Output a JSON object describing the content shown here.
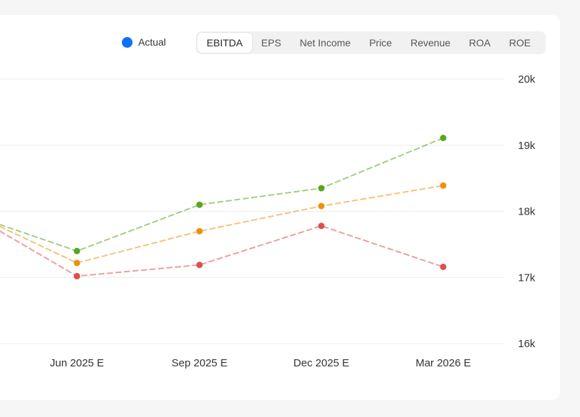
{
  "legend": {
    "label": "Actual",
    "color": "#0a73f5"
  },
  "tabs": [
    {
      "label": "EBITDA",
      "active": true
    },
    {
      "label": "EPS",
      "active": false
    },
    {
      "label": "Net Income",
      "active": false
    },
    {
      "label": "Price",
      "active": false
    },
    {
      "label": "Revenue",
      "active": false
    },
    {
      "label": "ROA",
      "active": false
    },
    {
      "label": "ROE",
      "active": false
    }
  ],
  "chart_data": {
    "type": "line",
    "x": [
      "Jun 2025 E",
      "Sep 2025 E",
      "Dec 2025 E",
      "Mar 2026 E"
    ],
    "yticks": [
      "16k",
      "17k",
      "18k",
      "19k",
      "20k"
    ],
    "ylim": [
      16000,
      20000
    ],
    "grid": true,
    "series": [
      {
        "color": "#5aa61e",
        "values": [
          17400,
          18100,
          18350,
          19110
        ],
        "lead_in": 17800
      },
      {
        "color": "#f0900a",
        "values": [
          17220,
          17700,
          18080,
          18390
        ],
        "lead_in": 17770
      },
      {
        "color": "#dc5050",
        "values": [
          17020,
          17190,
          17780,
          17160
        ],
        "lead_in": 17700
      }
    ]
  }
}
